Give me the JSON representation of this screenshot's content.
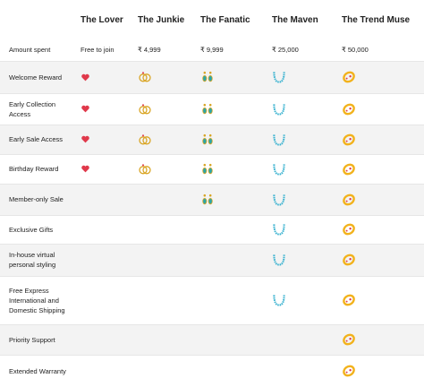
{
  "table": {
    "tiers": [
      "The Lover",
      "The Junkie",
      "The Fanatic",
      "The Maven",
      "The Trend Muse"
    ],
    "amount": {
      "label": "Amount spent",
      "values": [
        "Free to join",
        "₹ 4,999",
        "₹ 9,999",
        "₹ 25,000",
        "₹ 50,000"
      ]
    },
    "benefits": [
      "Welcome Reward",
      "Early Collection Access",
      "Early Sale Access",
      "Birthday Reward",
      "Member-only Sale",
      "Exclusive Gifts",
      "In-house virtual personal styling",
      "Free Express International and Domestic Shipping",
      "Priority Support",
      "Extended Warranty"
    ]
  }
}
